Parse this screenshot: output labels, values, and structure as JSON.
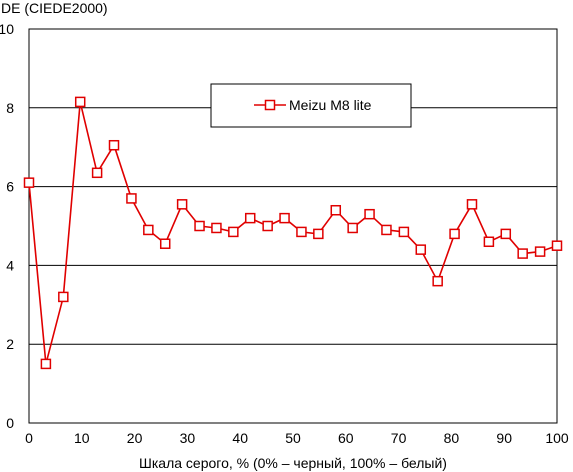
{
  "chart_data": {
    "type": "line",
    "ylabel": "DE (CIEDE2000)",
    "xlabel": "Шкала серого, % (0% – черный, 100% – белый)",
    "xlim": [
      0,
      100
    ],
    "ylim": [
      0,
      10
    ],
    "xticks": [
      "0",
      "10",
      "20",
      "30",
      "40",
      "50",
      "60",
      "70",
      "80",
      "90",
      "100"
    ],
    "yticks": [
      "0",
      "2",
      "4",
      "6",
      "8",
      "10"
    ],
    "grid": "horizontal",
    "legend": "top-center",
    "series": [
      {
        "name": "Meizu M8 lite",
        "color": "#e00000",
        "marker": "square-open",
        "x": [
          0,
          3.2,
          6.5,
          9.7,
          12.9,
          16.1,
          19.4,
          22.6,
          25.8,
          29.0,
          32.3,
          35.5,
          38.7,
          41.9,
          45.2,
          48.4,
          51.6,
          54.8,
          58.1,
          61.3,
          64.5,
          67.7,
          71.0,
          74.2,
          77.4,
          80.6,
          83.9,
          87.1,
          90.3,
          93.5,
          96.8,
          100
        ],
        "y": [
          6.1,
          1.5,
          3.2,
          8.15,
          6.35,
          7.05,
          5.7,
          4.9,
          4.55,
          5.55,
          5.0,
          4.95,
          4.85,
          5.2,
          5.0,
          5.2,
          4.85,
          4.8,
          5.4,
          4.95,
          5.3,
          4.9,
          4.85,
          4.4,
          3.6,
          4.8,
          5.55,
          4.6,
          4.8,
          4.3,
          4.35,
          4.5
        ]
      }
    ]
  }
}
